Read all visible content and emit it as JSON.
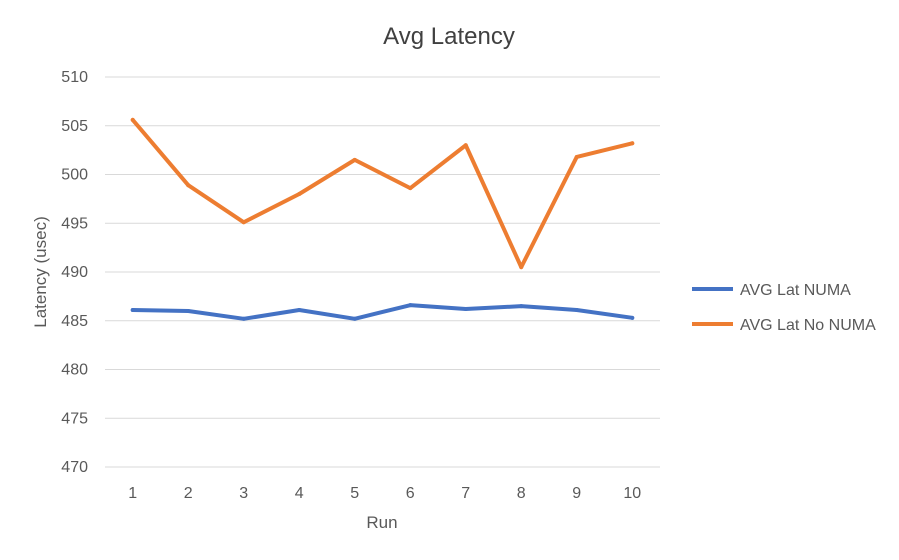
{
  "chart_data": {
    "type": "line",
    "title": "Avg Latency",
    "xlabel": "Run",
    "ylabel": "Latency (usec)",
    "categories": [
      "1",
      "2",
      "3",
      "4",
      "5",
      "6",
      "7",
      "8",
      "9",
      "10"
    ],
    "ylim": [
      470,
      510
    ],
    "yticks": [
      470,
      475,
      480,
      485,
      490,
      495,
      500,
      505,
      510
    ],
    "grid": true,
    "legend_position": "right",
    "series": [
      {
        "name": "AVG Lat NUMA",
        "color": "#4472c4",
        "values": [
          486.1,
          486.0,
          485.2,
          486.1,
          485.2,
          486.6,
          486.2,
          486.5,
          486.1,
          485.3
        ]
      },
      {
        "name": "AVG Lat No NUMA",
        "color": "#ed7d31",
        "values": [
          505.6,
          498.9,
          495.1,
          498.0,
          501.5,
          498.6,
          503.0,
          490.5,
          501.8,
          503.2
        ]
      }
    ]
  }
}
